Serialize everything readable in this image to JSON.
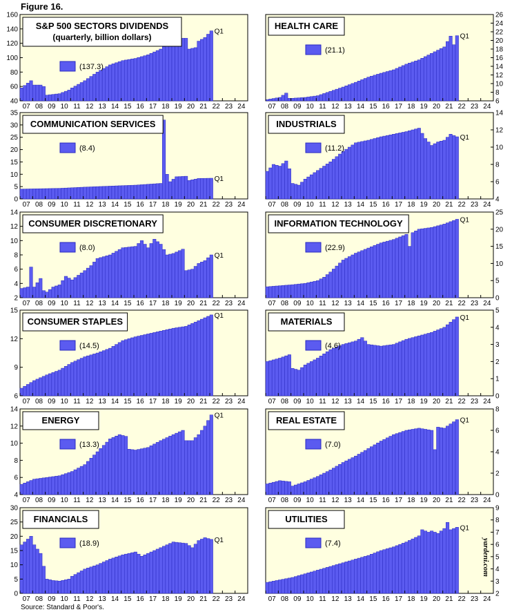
{
  "figure_label": "Figure 16.",
  "source_note": "Source: Standard & Poor's.",
  "watermark": "yardeni.com",
  "colors": {
    "bar": "#5b5bf0",
    "bar_stroke": "#2a2ac0",
    "plot_bg": "#ffffe0"
  },
  "x_tick_labels": [
    "07",
    "08",
    "09",
    "10",
    "11",
    "12",
    "13",
    "14",
    "15",
    "16",
    "17",
    "18",
    "19",
    "20",
    "21",
    "22",
    "23",
    "24"
  ],
  "chart_data": [
    {
      "type": "bar",
      "title": "S&P 500 SECTORS DIVIDENDS",
      "subtitle": "(quarterly, billion dollars)",
      "legend_value": "(137.3)",
      "end_label": "Q1",
      "y_axis": "left",
      "ylim": [
        40,
        160
      ],
      "yticks": [
        40,
        60,
        80,
        100,
        120,
        140,
        160
      ],
      "x_start": 2007,
      "quarters": 61,
      "knots": [
        [
          2007.0,
          58
        ],
        [
          2007.75,
          68
        ],
        [
          2008.0,
          62
        ],
        [
          2008.5,
          62
        ],
        [
          2008.75,
          60
        ],
        [
          2009.0,
          48
        ],
        [
          2009.5,
          49
        ],
        [
          2010.0,
          50
        ],
        [
          2010.75,
          55
        ],
        [
          2011.0,
          58
        ],
        [
          2012.0,
          68
        ],
        [
          2013.0,
          80
        ],
        [
          2014.0,
          90
        ],
        [
          2015.0,
          96
        ],
        [
          2016.0,
          99
        ],
        [
          2017.0,
          104
        ],
        [
          2018.0,
          112
        ],
        [
          2018.75,
          122
        ],
        [
          2019.0,
          121
        ],
        [
          2019.5,
          127
        ],
        [
          2020.0,
          127
        ],
        [
          2020.25,
          112
        ],
        [
          2020.75,
          114
        ],
        [
          2021.0,
          123
        ],
        [
          2021.5,
          128
        ],
        [
          2022.0,
          137.3
        ]
      ]
    },
    {
      "type": "bar",
      "title": "HEALTH CARE",
      "legend_value": "(21.1)",
      "end_label": "Q1",
      "y_axis": "right",
      "ylim": [
        6,
        26
      ],
      "yticks": [
        6,
        8,
        10,
        12,
        14,
        16,
        18,
        20,
        22,
        24,
        26
      ],
      "x_start": 2007,
      "quarters": 61,
      "knots": [
        [
          2007.0,
          6.3
        ],
        [
          2008.0,
          6.8
        ],
        [
          2008.5,
          7.8
        ],
        [
          2008.75,
          6.6
        ],
        [
          2009.0,
          6.6
        ],
        [
          2010.0,
          6.8
        ],
        [
          2011.0,
          7.2
        ],
        [
          2012.0,
          8.2
        ],
        [
          2013.0,
          9.2
        ],
        [
          2014.0,
          10.3
        ],
        [
          2015.0,
          11.5
        ],
        [
          2016.0,
          12.4
        ],
        [
          2017.0,
          13.2
        ],
        [
          2018.0,
          14.5
        ],
        [
          2019.0,
          15.5
        ],
        [
          2020.0,
          17.0
        ],
        [
          2021.0,
          18.5
        ],
        [
          2021.5,
          21.0
        ],
        [
          2021.75,
          19.0
        ],
        [
          2022.0,
          21.1
        ]
      ]
    },
    {
      "type": "bar",
      "title": "COMMUNICATION SERVICES",
      "legend_value": "(8.4)",
      "end_label": "Q1",
      "y_axis": "left",
      "ylim": [
        0,
        35
      ],
      "yticks": [
        0,
        5,
        10,
        15,
        20,
        25,
        30,
        35
      ],
      "x_start": 2007,
      "quarters": 61,
      "knots": [
        [
          2007.0,
          4.0
        ],
        [
          2010.0,
          4.3
        ],
        [
          2012.0,
          4.8
        ],
        [
          2014.0,
          5.2
        ],
        [
          2016.0,
          5.6
        ],
        [
          2018.0,
          6.3
        ],
        [
          2018.25,
          32.0
        ],
        [
          2018.5,
          10.0
        ],
        [
          2018.75,
          7.0
        ],
        [
          2019.25,
          9.0
        ],
        [
          2020.0,
          9.2
        ],
        [
          2020.25,
          7.5
        ],
        [
          2021.0,
          8.3
        ],
        [
          2022.0,
          8.4
        ]
      ]
    },
    {
      "type": "bar",
      "title": "INDUSTRIALS",
      "legend_value": "(11.2)",
      "end_label": "Q1",
      "y_axis": "right",
      "ylim": [
        4,
        14
      ],
      "yticks": [
        4,
        6,
        8,
        10,
        12,
        14
      ],
      "x_start": 2007,
      "quarters": 61,
      "knots": [
        [
          2007.0,
          7.2
        ],
        [
          2007.5,
          8.0
        ],
        [
          2008.0,
          7.8
        ],
        [
          2008.5,
          8.4
        ],
        [
          2008.75,
          7.5
        ],
        [
          2009.0,
          5.8
        ],
        [
          2009.5,
          5.6
        ],
        [
          2010.0,
          6.3
        ],
        [
          2011.0,
          7.3
        ],
        [
          2012.0,
          8.3
        ],
        [
          2013.0,
          9.5
        ],
        [
          2014.0,
          10.5
        ],
        [
          2015.0,
          10.8
        ],
        [
          2016.0,
          11.2
        ],
        [
          2017.0,
          11.5
        ],
        [
          2018.0,
          11.8
        ],
        [
          2019.0,
          12.2
        ],
        [
          2019.5,
          11.0
        ],
        [
          2020.0,
          10.2
        ],
        [
          2020.5,
          10.6
        ],
        [
          2021.0,
          10.8
        ],
        [
          2021.5,
          11.5
        ],
        [
          2022.0,
          11.2
        ]
      ]
    },
    {
      "type": "bar",
      "title": "CONSUMER DISCRETIONARY",
      "legend_value": "(8.0)",
      "end_label": "Q1",
      "y_axis": "left",
      "ylim": [
        2,
        14
      ],
      "yticks": [
        2,
        4,
        6,
        8,
        10,
        12,
        14
      ],
      "x_start": 2007,
      "quarters": 61,
      "knots": [
        [
          2007.0,
          3.3
        ],
        [
          2007.5,
          3.5
        ],
        [
          2007.75,
          6.3
        ],
        [
          2008.0,
          3.5
        ],
        [
          2008.5,
          4.7
        ],
        [
          2008.75,
          3.0
        ],
        [
          2009.0,
          2.8
        ],
        [
          2009.5,
          3.5
        ],
        [
          2010.0,
          3.8
        ],
        [
          2010.5,
          5.0
        ],
        [
          2011.0,
          4.5
        ],
        [
          2012.0,
          5.8
        ],
        [
          2012.5,
          6.5
        ],
        [
          2013.0,
          7.5
        ],
        [
          2014.0,
          8.0
        ],
        [
          2015.0,
          9.0
        ],
        [
          2016.0,
          9.2
        ],
        [
          2016.5,
          10.0
        ],
        [
          2017.0,
          9.0
        ],
        [
          2017.5,
          10.2
        ],
        [
          2018.0,
          9.5
        ],
        [
          2018.5,
          8.0
        ],
        [
          2019.0,
          8.2
        ],
        [
          2019.75,
          8.8
        ],
        [
          2020.0,
          5.8
        ],
        [
          2020.5,
          6.0
        ],
        [
          2021.0,
          6.8
        ],
        [
          2021.5,
          7.2
        ],
        [
          2022.0,
          8.0
        ]
      ]
    },
    {
      "type": "bar",
      "title": "INFORMATION TECHNOLOGY",
      "legend_value": "(22.9)",
      "end_label": "Q1",
      "y_axis": "right",
      "ylim": [
        0,
        25
      ],
      "yticks": [
        0,
        5,
        10,
        15,
        20,
        25
      ],
      "x_start": 2007,
      "quarters": 61,
      "knots": [
        [
          2007.0,
          3.2
        ],
        [
          2009.0,
          3.8
        ],
        [
          2010.0,
          4.2
        ],
        [
          2011.0,
          5.0
        ],
        [
          2011.5,
          6.0
        ],
        [
          2012.0,
          7.5
        ],
        [
          2013.0,
          11.0
        ],
        [
          2014.0,
          13.0
        ],
        [
          2015.0,
          14.5
        ],
        [
          2016.0,
          16.0
        ],
        [
          2017.0,
          17.0
        ],
        [
          2018.0,
          18.5
        ],
        [
          2018.25,
          15.0
        ],
        [
          2018.5,
          19.0
        ],
        [
          2019.0,
          20.0
        ],
        [
          2020.0,
          20.5
        ],
        [
          2021.0,
          21.5
        ],
        [
          2022.0,
          22.9
        ]
      ]
    },
    {
      "type": "bar",
      "title": "CONSUMER STAPLES",
      "legend_value": "(14.5)",
      "end_label": "Q1",
      "y_axis": "left",
      "ylim": [
        6,
        15
      ],
      "yticks": [
        6,
        9,
        12,
        15
      ],
      "x_start": 2007,
      "quarters": 61,
      "knots": [
        [
          2007.0,
          6.8
        ],
        [
          2008.0,
          7.6
        ],
        [
          2009.0,
          8.2
        ],
        [
          2010.0,
          8.7
        ],
        [
          2011.0,
          9.5
        ],
        [
          2012.0,
          10.1
        ],
        [
          2013.0,
          10.5
        ],
        [
          2014.0,
          11.0
        ],
        [
          2015.0,
          11.8
        ],
        [
          2016.0,
          12.2
        ],
        [
          2017.0,
          12.5
        ],
        [
          2018.0,
          12.8
        ],
        [
          2019.0,
          13.1
        ],
        [
          2020.0,
          13.3
        ],
        [
          2021.0,
          13.9
        ],
        [
          2022.0,
          14.5
        ]
      ]
    },
    {
      "type": "bar",
      "title": "MATERIALS",
      "legend_value": "(4.6)",
      "end_label": "Q1",
      "y_axis": "right",
      "ylim": [
        0,
        5
      ],
      "yticks": [
        0,
        1,
        2,
        3,
        4,
        5
      ],
      "x_start": 2007,
      "quarters": 61,
      "knots": [
        [
          2007.0,
          2.0
        ],
        [
          2008.0,
          2.2
        ],
        [
          2008.75,
          2.4
        ],
        [
          2009.0,
          1.6
        ],
        [
          2009.5,
          1.5
        ],
        [
          2010.0,
          1.8
        ],
        [
          2011.0,
          2.2
        ],
        [
          2012.0,
          2.7
        ],
        [
          2013.0,
          3.0
        ],
        [
          2014.0,
          3.2
        ],
        [
          2014.5,
          3.4
        ],
        [
          2015.0,
          3.0
        ],
        [
          2016.0,
          2.9
        ],
        [
          2017.0,
          3.0
        ],
        [
          2018.0,
          3.3
        ],
        [
          2019.0,
          3.5
        ],
        [
          2020.0,
          3.7
        ],
        [
          2021.0,
          4.0
        ],
        [
          2022.0,
          4.6
        ]
      ]
    },
    {
      "type": "bar",
      "title": "ENERGY",
      "legend_value": "(13.3)",
      "end_label": "Q1",
      "y_axis": "left",
      "ylim": [
        4,
        14
      ],
      "yticks": [
        4,
        6,
        8,
        10,
        12,
        14
      ],
      "x_start": 2007,
      "quarters": 61,
      "knots": [
        [
          2007.0,
          5.2
        ],
        [
          2008.0,
          5.8
        ],
        [
          2009.0,
          6.0
        ],
        [
          2010.0,
          6.2
        ],
        [
          2011.0,
          6.7
        ],
        [
          2012.0,
          7.5
        ],
        [
          2013.0,
          9.0
        ],
        [
          2014.0,
          10.5
        ],
        [
          2014.75,
          11.0
        ],
        [
          2015.25,
          10.8
        ],
        [
          2015.5,
          9.3
        ],
        [
          2016.0,
          9.2
        ],
        [
          2017.0,
          9.5
        ],
        [
          2018.0,
          10.3
        ],
        [
          2019.0,
          11.0
        ],
        [
          2019.75,
          11.5
        ],
        [
          2020.0,
          10.3
        ],
        [
          2020.5,
          10.3
        ],
        [
          2021.0,
          11.0
        ],
        [
          2021.5,
          12.0
        ],
        [
          2022.0,
          13.3
        ]
      ]
    },
    {
      "type": "bar",
      "title": "REAL ESTATE",
      "legend_value": "(7.0)",
      "end_label": "Q1",
      "y_axis": "right",
      "ylim": [
        0,
        8
      ],
      "yticks": [
        0,
        2,
        4,
        6,
        8
      ],
      "x_start": 2007,
      "quarters": 61,
      "knots": [
        [
          2007.0,
          1.0
        ],
        [
          2008.0,
          1.3
        ],
        [
          2008.75,
          1.2
        ],
        [
          2009.0,
          0.8
        ],
        [
          2009.5,
          1.0
        ],
        [
          2010.0,
          1.2
        ],
        [
          2011.0,
          1.7
        ],
        [
          2012.0,
          2.3
        ],
        [
          2013.0,
          3.0
        ],
        [
          2014.0,
          3.6
        ],
        [
          2015.0,
          4.3
        ],
        [
          2016.0,
          5.0
        ],
        [
          2017.0,
          5.6
        ],
        [
          2018.0,
          6.0
        ],
        [
          2019.0,
          6.2
        ],
        [
          2020.0,
          6.0
        ],
        [
          2020.25,
          4.2
        ],
        [
          2020.5,
          6.3
        ],
        [
          2021.0,
          6.2
        ],
        [
          2021.75,
          6.8
        ],
        [
          2022.0,
          7.0
        ]
      ]
    },
    {
      "type": "bar",
      "title": "FINANCIALS",
      "legend_value": "(18.9)",
      "end_label": "Q1",
      "y_axis": "left",
      "ylim": [
        0,
        30
      ],
      "yticks": [
        0,
        5,
        10,
        15,
        20,
        25,
        30
      ],
      "x_start": 2007,
      "quarters": 61,
      "knots": [
        [
          2007.0,
          17.0
        ],
        [
          2007.75,
          20.0
        ],
        [
          2008.0,
          17.0
        ],
        [
          2008.5,
          14.0
        ],
        [
          2009.0,
          5.0
        ],
        [
          2009.5,
          4.5
        ],
        [
          2010.0,
          4.3
        ],
        [
          2010.75,
          5.0
        ],
        [
          2011.0,
          6.0
        ],
        [
          2012.0,
          8.5
        ],
        [
          2013.0,
          10.0
        ],
        [
          2014.0,
          12.0
        ],
        [
          2015.0,
          13.5
        ],
        [
          2016.0,
          14.5
        ],
        [
          2016.5,
          13.0
        ],
        [
          2017.0,
          14.0
        ],
        [
          2018.0,
          16.0
        ],
        [
          2019.0,
          18.0
        ],
        [
          2020.0,
          17.5
        ],
        [
          2020.5,
          16.0
        ],
        [
          2021.0,
          18.5
        ],
        [
          2021.5,
          19.5
        ],
        [
          2022.0,
          18.9
        ]
      ]
    },
    {
      "type": "bar",
      "title": "UTILITIES",
      "legend_value": "(7.4)",
      "end_label": "Q1",
      "y_axis": "right",
      "ylim": [
        2,
        9
      ],
      "yticks": [
        2,
        3,
        4,
        5,
        6,
        7,
        8,
        9
      ],
      "x_start": 2007,
      "quarters": 61,
      "knots": [
        [
          2007.0,
          2.9
        ],
        [
          2008.0,
          3.1
        ],
        [
          2009.0,
          3.3
        ],
        [
          2010.0,
          3.6
        ],
        [
          2011.0,
          3.9
        ],
        [
          2012.0,
          4.2
        ],
        [
          2013.0,
          4.5
        ],
        [
          2014.0,
          4.8
        ],
        [
          2015.0,
          5.1
        ],
        [
          2016.0,
          5.5
        ],
        [
          2017.0,
          5.8
        ],
        [
          2018.0,
          6.2
        ],
        [
          2019.0,
          6.7
        ],
        [
          2019.25,
          7.2
        ],
        [
          2019.75,
          7.0
        ],
        [
          2020.0,
          7.1
        ],
        [
          2020.5,
          6.9
        ],
        [
          2021.0,
          7.3
        ],
        [
          2021.25,
          7.8
        ],
        [
          2021.5,
          7.2
        ],
        [
          2022.0,
          7.4
        ]
      ]
    }
  ]
}
